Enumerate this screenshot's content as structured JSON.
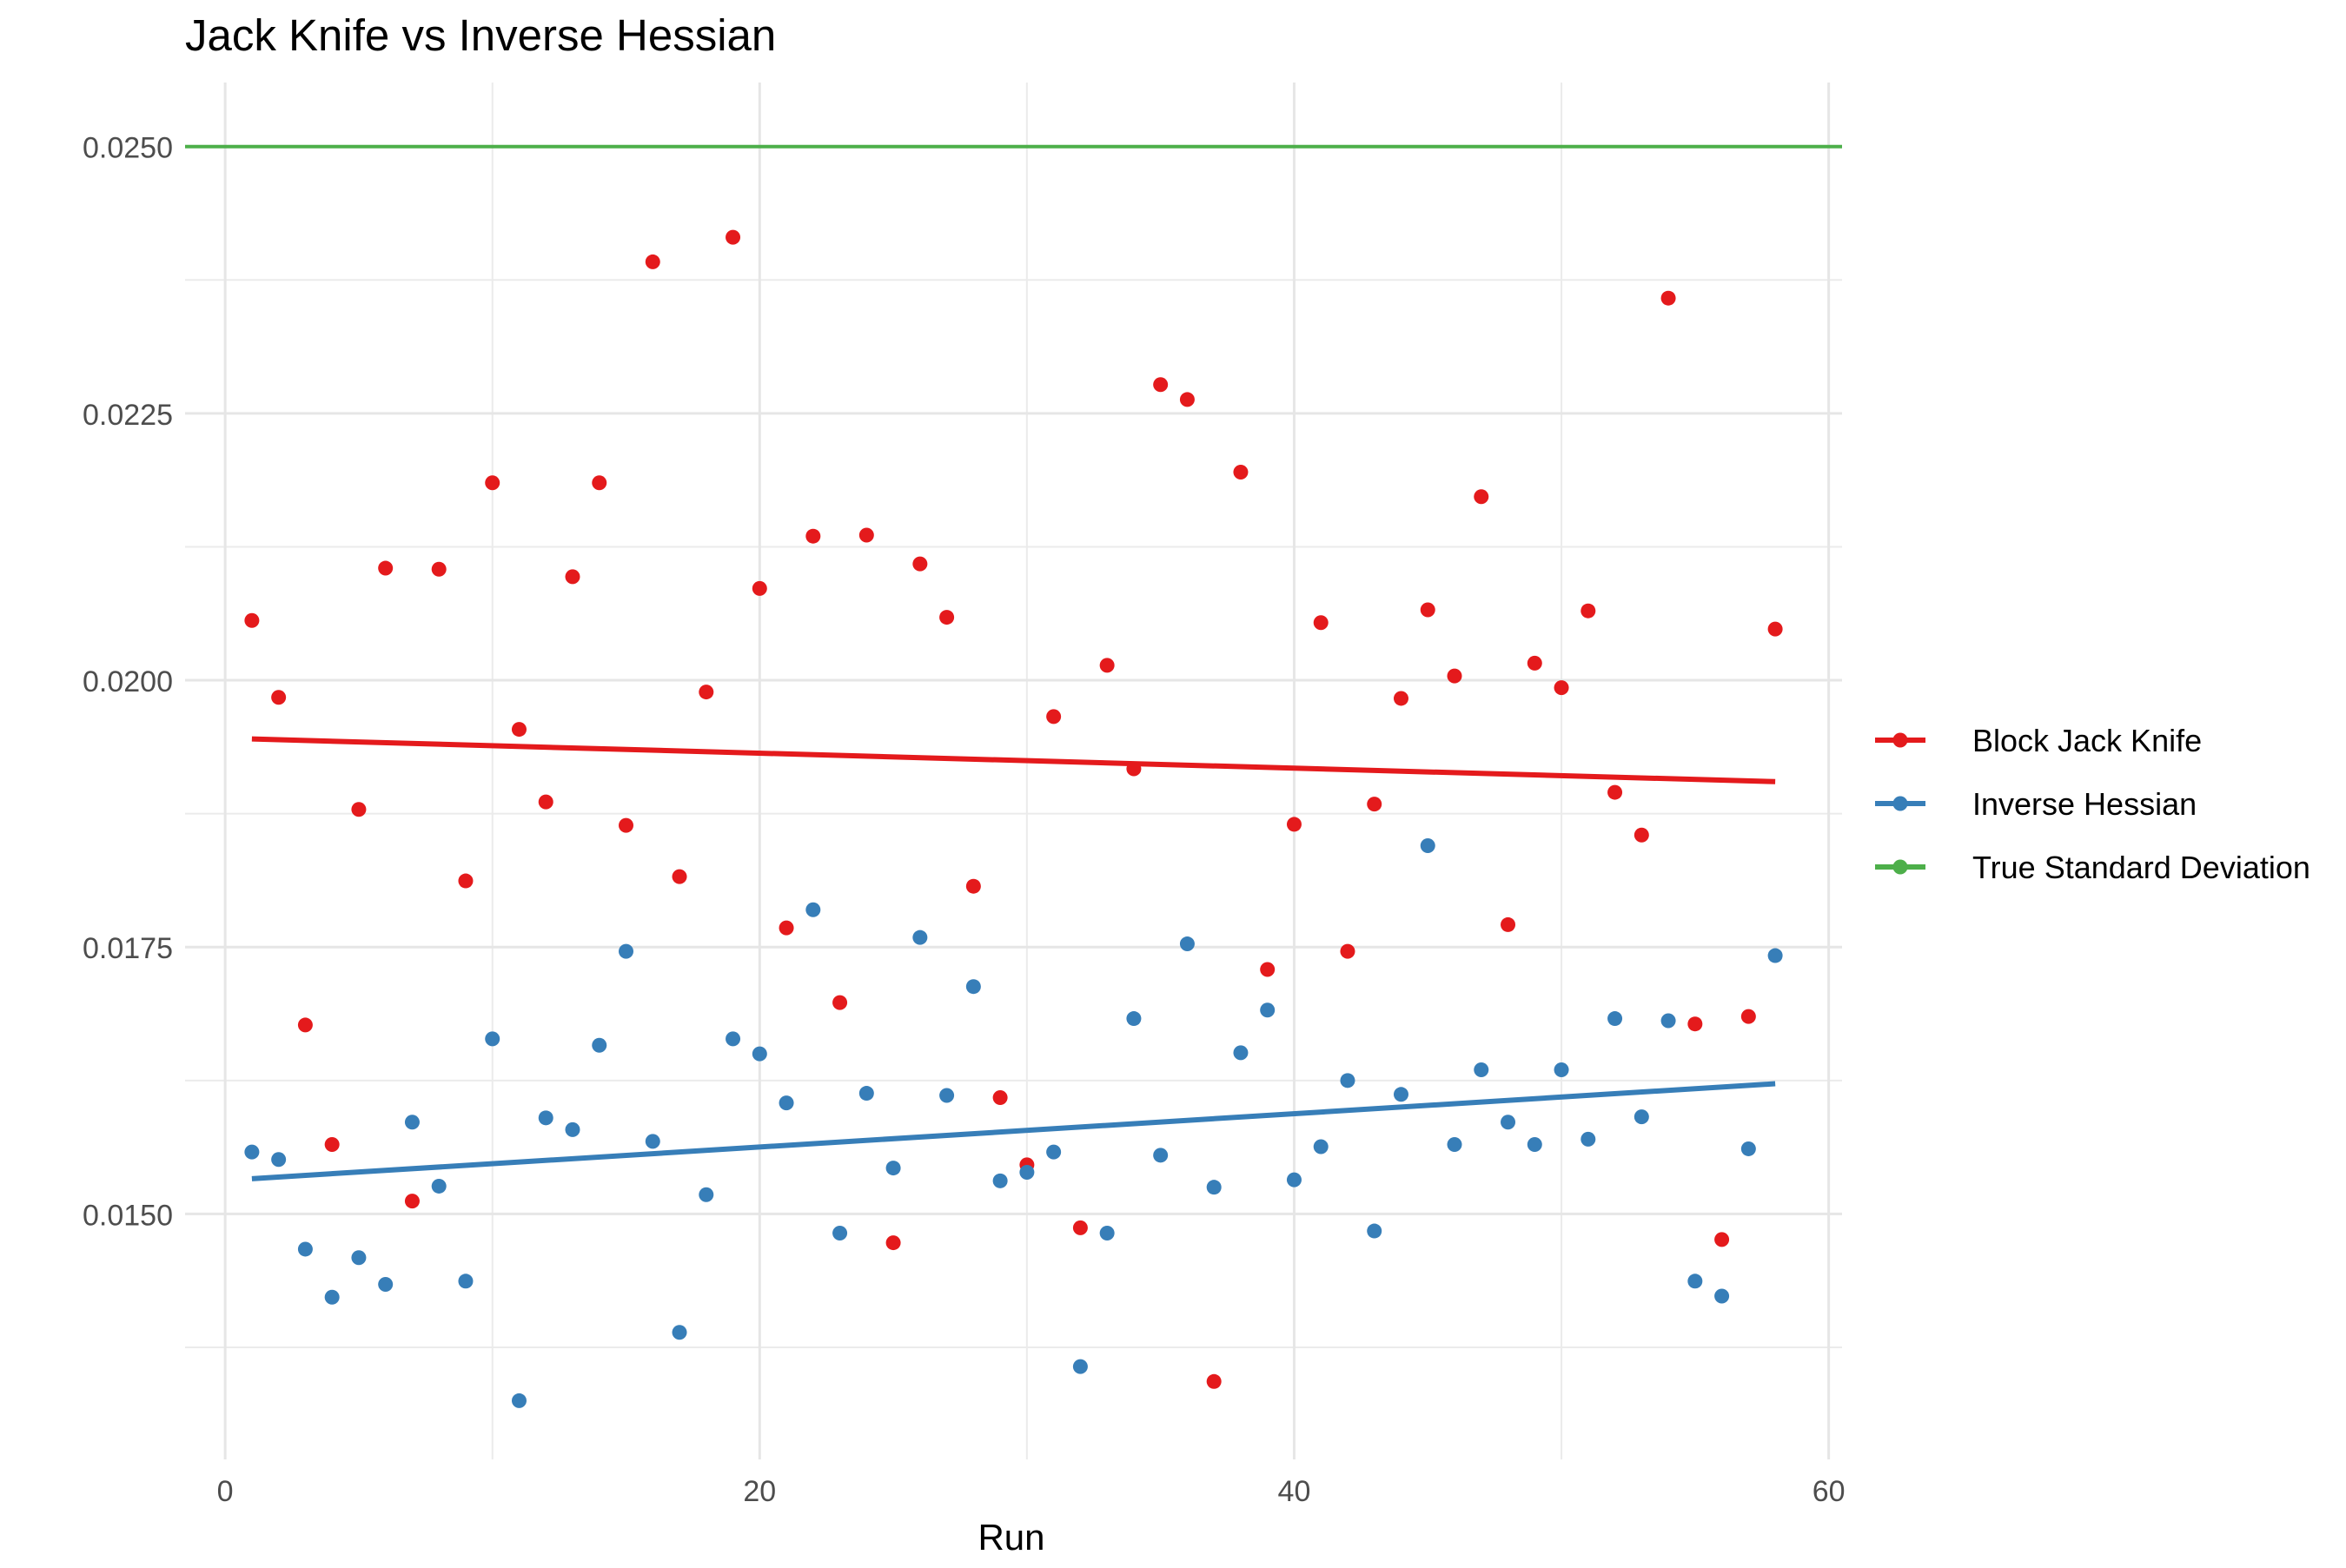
{
  "chart_data": {
    "type": "scatter",
    "title": "Jack Knife vs Inverse Hessian",
    "xlabel": "Run",
    "ylabel": "",
    "xlim": [
      -1.5,
      60.5
    ],
    "ylim": [
      0.0127,
      0.0256
    ],
    "x_ticks": [
      0,
      20,
      40,
      60
    ],
    "x_tick_labels": [
      "0",
      "20",
      "40",
      "60"
    ],
    "y_ticks": [
      0.015,
      0.0175,
      0.02,
      0.0225,
      0.025
    ],
    "y_tick_labels": [
      "0.0150",
      "0.0175",
      "0.0200",
      "0.0225",
      "0.0250"
    ],
    "grid": true,
    "legend_position": "right",
    "x": [
      1,
      2,
      3,
      4,
      5,
      6,
      7,
      8,
      9,
      10,
      11,
      12,
      13,
      14,
      15,
      16,
      17,
      18,
      19,
      20,
      21,
      22,
      23,
      24,
      25,
      26,
      27,
      28,
      29,
      30,
      31,
      32,
      33,
      34,
      35,
      36,
      37,
      38,
      39,
      40,
      41,
      42,
      43,
      44,
      45,
      46,
      47,
      48,
      49,
      50,
      51,
      52,
      53,
      54,
      55,
      56,
      57,
      58
    ],
    "series": [
      {
        "name": "Block Jack Knife",
        "color": "#E41A1C",
        "values": [
          0.02056,
          0.01984,
          0.01677,
          0.01565,
          0.01879,
          0.02105,
          0.01512,
          0.02104,
          0.01812,
          0.02185,
          0.01954,
          0.01886,
          0.02097,
          0.02185,
          0.01864,
          0.02392,
          0.01816,
          0.01989,
          0.02415,
          0.02086,
          0.01768,
          0.02135,
          0.01698,
          0.02136,
          0.01473,
          0.02109,
          0.02059,
          0.01807,
          0.01609,
          0.01546,
          0.01966,
          0.01487,
          0.02014,
          0.01917,
          0.02277,
          0.02263,
          0.01343,
          0.02195,
          0.01729,
          0.01865,
          0.02054,
          0.01746,
          0.01884,
          0.01983,
          0.02066,
          0.02004,
          0.02172,
          0.01771,
          0.02016,
          0.01993,
          0.02065,
          0.01895,
          0.01855,
          0.02358,
          0.01678,
          0.01476,
          0.01685,
          0.02048
        ],
        "trend": [
          0.01945,
          0.01905
        ]
      },
      {
        "name": "Inverse Hessian",
        "color": "#377EB8",
        "values": [
          0.01558,
          0.01551,
          0.01467,
          0.01422,
          0.01459,
          0.01434,
          0.01586,
          0.01526,
          0.01437,
          0.01664,
          0.01325,
          0.0159,
          0.01579,
          0.01658,
          0.01746,
          0.01568,
          0.01389,
          0.01518,
          0.01664,
          0.0165,
          0.01604,
          0.01785,
          0.01482,
          0.01613,
          0.01543,
          0.01759,
          0.01611,
          0.01713,
          0.01531,
          0.01539,
          0.01558,
          0.01357,
          0.01482,
          0.01683,
          0.01555,
          0.01753,
          0.01525,
          0.01651,
          0.01691,
          0.01532,
          0.01563,
          0.01625,
          0.01484,
          0.01612,
          0.01845,
          0.01565,
          0.01635,
          0.01586,
          0.01565,
          0.01635,
          0.0157,
          0.01683,
          0.01591,
          0.01681,
          0.01437,
          0.01423,
          0.01561,
          0.01742
        ],
        "trend": [
          0.01533,
          0.01622
        ]
      },
      {
        "name": "True Standard Deviation",
        "color": "#4DAF4A",
        "hline": 0.025
      }
    ]
  }
}
